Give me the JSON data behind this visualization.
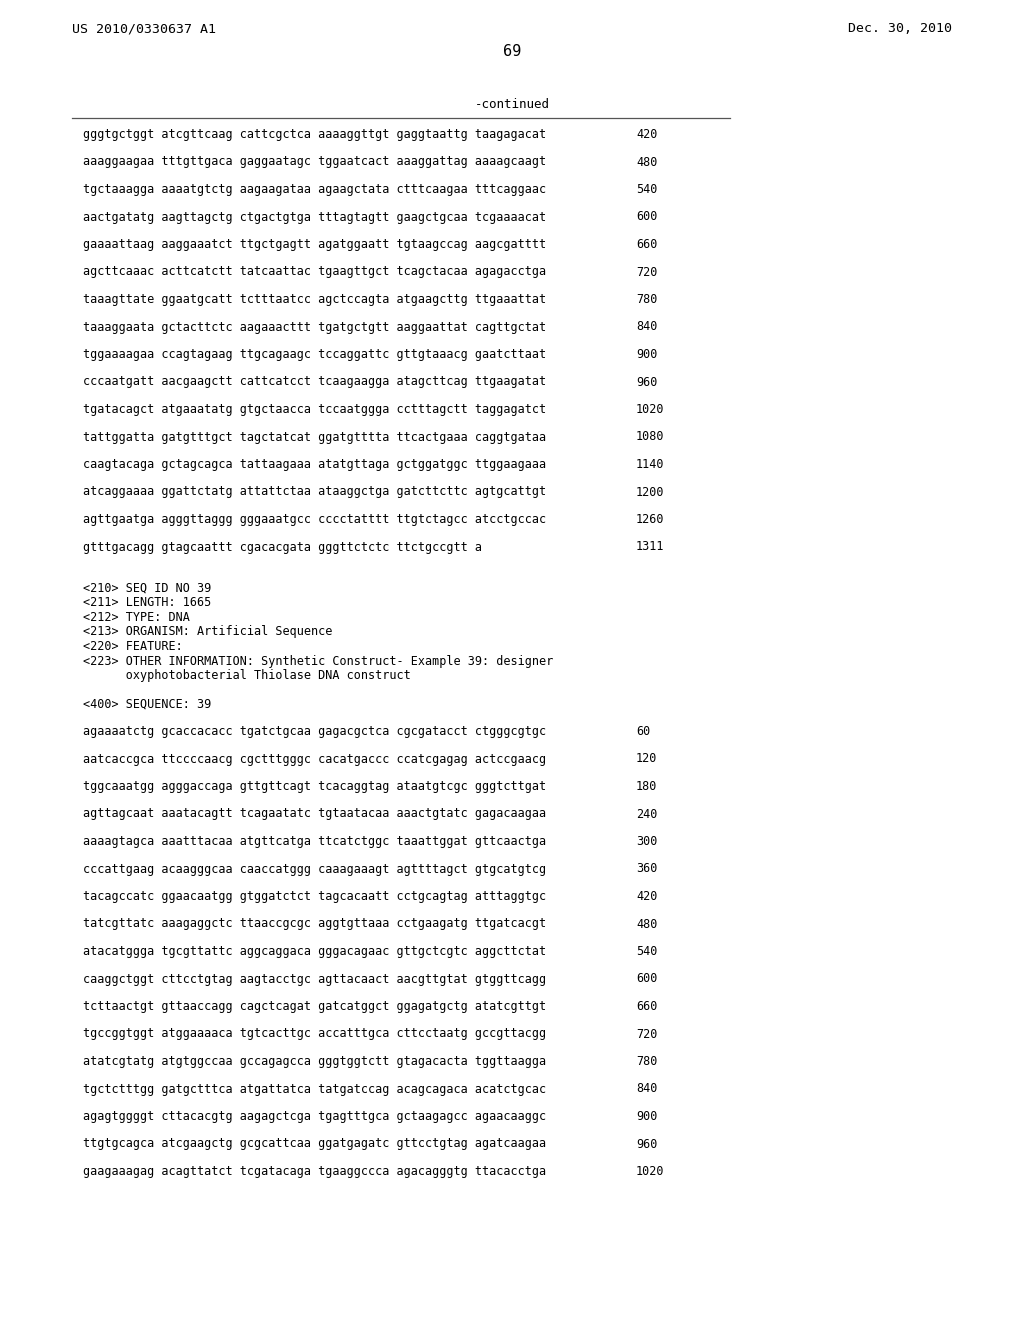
{
  "header_left": "US 2010/0330637 A1",
  "header_right": "Dec. 30, 2010",
  "page_number": "69",
  "continued_label": "-continued",
  "background_color": "#ffffff",
  "text_color": "#000000",
  "sequence_lines_top": [
    [
      "gggtgctggt atcgttcaag cattcgctca aaaaggttgt gaggtaattg taagagacat",
      "420"
    ],
    [
      "aaaggaagaa tttgttgaca gaggaatagc tggaatcact aaaggattag aaaagcaagt",
      "480"
    ],
    [
      "tgctaaagga aaaatgtctg aagaagataa agaagctata ctttcaagaa tttcaggaac",
      "540"
    ],
    [
      "aactgatatg aagttagctg ctgactgtga tttagtagtt gaagctgcaa tcgaaaacat",
      "600"
    ],
    [
      "gaaaattaag aaggaaatct ttgctgagtt agatggaatt tgtaagccag aagcgatttt",
      "660"
    ],
    [
      "agcttcaaac acttcatctt tatcaattac tgaagttgct tcagctacaa agagacctga",
      "720"
    ],
    [
      "taaagttate ggaatgcatt tctttaatcc agctccagta atgaagcttg ttgaaattat",
      "780"
    ],
    [
      "taaaggaata gctacttctc aagaaacttt tgatgctgtt aaggaattat cagttgctat",
      "840"
    ],
    [
      "tggaaaagaa ccagtagaag ttgcagaagc tccaggattc gttgtaaacg gaatcttaat",
      "900"
    ],
    [
      "cccaatgatt aacgaagctt cattcatcct tcaagaagga atagcttcag ttgaagatat",
      "960"
    ],
    [
      "tgatacagct atgaaatatg gtgctaacca tccaatggga cctttagctt taggagatct",
      "1020"
    ],
    [
      "tattggatta gatgtttgct tagctatcat ggatgtttta ttcactgaaa caggtgataa",
      "1080"
    ],
    [
      "caagtacaga gctagcagca tattaagaaa atatgttaga gctggatggc ttggaagaaa",
      "1140"
    ],
    [
      "atcaggaaaa ggattctatg attattctaa ataaggctga gatcttcttc agtgcattgt",
      "1200"
    ],
    [
      "agttgaatga agggttaggg gggaaatgcc cccctatttt ttgtctagcc atcctgccac",
      "1260"
    ],
    [
      "gtttgacagg gtagcaattt cgacacgata gggttctctc ttctgccgtt a",
      "1311"
    ]
  ],
  "metadata_lines": [
    "<210> SEQ ID NO 39",
    "<211> LENGTH: 1665",
    "<212> TYPE: DNA",
    "<213> ORGANISM: Artificial Sequence",
    "<220> FEATURE:",
    "<223> OTHER INFORMATION: Synthetic Construct- Example 39: designer",
    "      oxyphotobacterial Thiolase DNA construct"
  ],
  "sequence_label": "<400> SEQUENCE: 39",
  "sequence_lines_bottom": [
    [
      "agaaaatctg gcaccacacc tgatctgcaa gagacgctca cgcgatacct ctgggcgtgc",
      "60"
    ],
    [
      "aatcaccgca ttccccaacg cgctttgggc cacatgaccc ccatcgagag actccgaacg",
      "120"
    ],
    [
      "tggcaaatgg agggaccaga gttgttcagt tcacaggtag ataatgtcgc gggtcttgat",
      "180"
    ],
    [
      "agttagcaat aaatacagtt tcagaatatc tgtaatacaa aaactgtatc gagacaagaa",
      "240"
    ],
    [
      "aaaagtagca aaatttacaa atgttcatga ttcatctggc taaattggat gttcaactga",
      "300"
    ],
    [
      "cccattgaag acaagggcaa caaccatggg caaagaaagt agttttagct gtgcatgtcg",
      "360"
    ],
    [
      "tacagccatc ggaacaatgg gtggatctct tagcacaatt cctgcagtag atttaggtgc",
      "420"
    ],
    [
      "tatcgttatc aaagaggctc ttaaccgcgc aggtgttaaa cctgaagatg ttgatcacgt",
      "480"
    ],
    [
      "atacatggga tgcgttattc aggcaggaca gggacagaac gttgctcgtc aggcttctat",
      "540"
    ],
    [
      "caaggctggt cttcctgtag aagtacctgc agttacaact aacgttgtat gtggttcagg",
      "600"
    ],
    [
      "tcttaactgt gttaaccagg cagctcagat gatcatggct ggagatgctg atatcgttgt",
      "660"
    ],
    [
      "tgccggtggt atggaaaaca tgtcacttgc accatttgca cttcctaatg gccgttacgg",
      "720"
    ],
    [
      "atatcgtatg atgtggccaa gccagagcca gggtggtctt gtagacacta tggttaagga",
      "780"
    ],
    [
      "tgctctttgg gatgctttca atgattatca tatgatccag acagcagaca acatctgcac",
      "840"
    ],
    [
      "agagtggggt cttacacgtg aagagctcga tgagtttgca gctaagagcc agaacaaggc",
      "900"
    ],
    [
      "ttgtgcagca atcgaagctg gcgcattcaa ggatgagatc gttcctgtag agatcaagaa",
      "960"
    ],
    [
      "gaagaaagag acagttatct tcgatacaga tgaaggccca agacagggtg ttacacctga",
      "1020"
    ]
  ]
}
